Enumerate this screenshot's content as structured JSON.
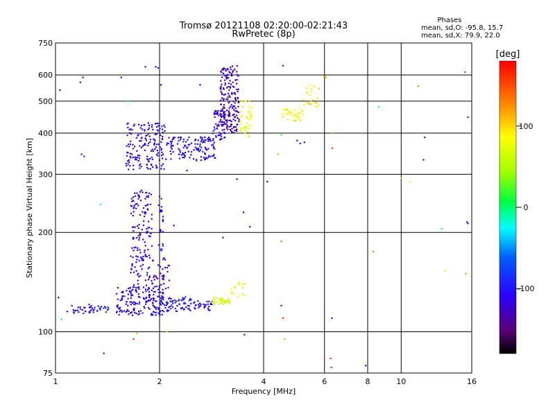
{
  "chart_data": {
    "type": "scatter",
    "title": "Tromsø 20121108 02:20:00-02:21:43",
    "subtitle": "RwPretec (8p)",
    "xlabel": "Frequency [MHz]",
    "ylabel": "Stationary phase Virtual Height [km]",
    "x_scale": "log",
    "y_scale": "log",
    "xlim": [
      1,
      16
    ],
    "ylim": [
      75,
      750
    ],
    "x_ticks": [
      1,
      2,
      4,
      6,
      8,
      10,
      16
    ],
    "x_tick_labels": [
      "1",
      "2",
      "4",
      "6",
      "8",
      "10",
      "16"
    ],
    "y_ticks": [
      75,
      100,
      200,
      300,
      400,
      500,
      600,
      750
    ],
    "y_tick_labels": [
      "75",
      "100",
      "200",
      "300",
      "400",
      "500",
      "600",
      "750"
    ],
    "grid": true,
    "colorbar": {
      "label": "[deg]",
      "range": [
        -180,
        180
      ],
      "ticks": [
        100,
        0,
        -100
      ],
      "tick_labels": [
        "100",
        "0",
        "-100"
      ]
    },
    "annotation": {
      "header": "Phases",
      "line1": "mean, sd,O: -95.8, 15.7",
      "line2": "mean, sd,X:  79.9, 22.0"
    },
    "clusters": [
      {
        "x_range": [
          1.08,
          1.3
        ],
        "y_range": [
          113,
          121
        ],
        "phase": -108,
        "n": 32
      },
      {
        "x_range": [
          1.32,
          1.44
        ],
        "y_range": [
          114,
          120
        ],
        "phase": -100,
        "n": 14
      },
      {
        "x_range": [
          1.5,
          2.05
        ],
        "y_range": [
          112,
          137
        ],
        "phase": -112,
        "n": 170
      },
      {
        "x_range": [
          2.0,
          2.5
        ],
        "y_range": [
          115,
          128
        ],
        "phase": -105,
        "n": 70
      },
      {
        "x_range": [
          2.5,
          2.85
        ],
        "y_range": [
          116,
          124
        ],
        "phase": -110,
        "n": 30
      },
      {
        "x_range": [
          2.85,
          3.2
        ],
        "y_range": [
          121,
          127
        ],
        "phase": 70,
        "n": 36
      },
      {
        "x_range": [
          3.2,
          3.55
        ],
        "y_range": [
          124,
          142
        ],
        "phase": 78,
        "n": 16
      },
      {
        "x_range": [
          1.65,
          2.15
        ],
        "y_range": [
          135,
          168
        ],
        "phase": -118,
        "n": 80
      },
      {
        "x_range": [
          1.65,
          1.9
        ],
        "y_range": [
          168,
          270
        ],
        "phase": -115,
        "n": 110
      },
      {
        "x_range": [
          1.98,
          2.05
        ],
        "y_range": [
          175,
          260
        ],
        "phase": -110,
        "n": 22
      },
      {
        "x_range": [
          1.6,
          2.1
        ],
        "y_range": [
          310,
          430
        ],
        "phase": -112,
        "n": 170
      },
      {
        "x_range": [
          2.1,
          2.9
        ],
        "y_range": [
          330,
          390
        ],
        "phase": -108,
        "n": 130
      },
      {
        "x_range": [
          2.85,
          3.1
        ],
        "y_range": [
          380,
          470
        ],
        "phase": -120,
        "n": 60
      },
      {
        "x_range": [
          3.0,
          3.4
        ],
        "y_range": [
          400,
          640
        ],
        "phase": -130,
        "n": 190
      },
      {
        "x_range": [
          3.4,
          3.7
        ],
        "y_range": [
          390,
          500
        ],
        "phase": 82,
        "n": 42
      },
      {
        "x_range": [
          4.5,
          5.2
        ],
        "y_range": [
          435,
          475
        ],
        "phase": 88,
        "n": 38
      },
      {
        "x_range": [
          5.2,
          5.8
        ],
        "y_range": [
          480,
          560
        ],
        "phase": 95,
        "n": 22
      }
    ],
    "scattered_points": [
      [
        1.03,
        540,
        -110
      ],
      [
        1.02,
        127,
        -110
      ],
      [
        1.04,
        109,
        -20
      ],
      [
        1.2,
        590,
        -110
      ],
      [
        1.18,
        570,
        -120
      ],
      [
        1.19,
        345,
        -110
      ],
      [
        1.21,
        340,
        -100
      ],
      [
        1.35,
        243,
        -20
      ],
      [
        1.38,
        86,
        -150
      ],
      [
        1.55,
        590,
        -120
      ],
      [
        1.62,
        500,
        -20
      ],
      [
        1.72,
        99,
        120
      ],
      [
        1.68,
        95,
        160
      ],
      [
        1.82,
        635,
        -110
      ],
      [
        1.95,
        635,
        -110
      ],
      [
        1.98,
        630,
        -120
      ],
      [
        2.02,
        560,
        -110
      ],
      [
        2.1,
        100,
        60
      ],
      [
        2.2,
        210,
        -120
      ],
      [
        2.4,
        308,
        -110
      ],
      [
        2.62,
        560,
        -110
      ],
      [
        3.05,
        193,
        -115
      ],
      [
        3.35,
        290,
        -110
      ],
      [
        3.5,
        230,
        -110
      ],
      [
        3.65,
        208,
        -130
      ],
      [
        3.52,
        98,
        -150
      ],
      [
        4.1,
        285,
        -110
      ],
      [
        4.5,
        188,
        130
      ],
      [
        4.5,
        120,
        -140
      ],
      [
        4.55,
        110,
        160
      ],
      [
        4.6,
        95,
        30
      ],
      [
        4.5,
        395,
        20
      ],
      [
        4.55,
        640,
        -110
      ],
      [
        4.4,
        345,
        30
      ],
      [
        5.0,
        380,
        -110
      ],
      [
        5.1,
        372,
        -110
      ],
      [
        5.25,
        375,
        -110
      ],
      [
        6.0,
        595,
        130
      ],
      [
        6.05,
        590,
        120
      ],
      [
        6.25,
        83,
        160
      ],
      [
        6.28,
        78,
        160
      ],
      [
        6.3,
        110,
        -120
      ],
      [
        6.32,
        360,
        160
      ],
      [
        6.35,
        400,
        120
      ],
      [
        7.9,
        79,
        -110
      ],
      [
        8.3,
        175,
        130
      ],
      [
        8.6,
        480,
        -10
      ],
      [
        10.0,
        292,
        40
      ],
      [
        10.6,
        284,
        90
      ],
      [
        11.2,
        555,
        130
      ],
      [
        11.7,
        388,
        -110
      ],
      [
        11.6,
        332,
        -110
      ],
      [
        13.1,
        205,
        20
      ],
      [
        13.4,
        153,
        60
      ],
      [
        15.3,
        612,
        160
      ],
      [
        15.4,
        150,
        120
      ],
      [
        15.6,
        447,
        -120
      ],
      [
        15.5,
        215,
        -120
      ],
      [
        15.6,
        213,
        -120
      ]
    ]
  }
}
